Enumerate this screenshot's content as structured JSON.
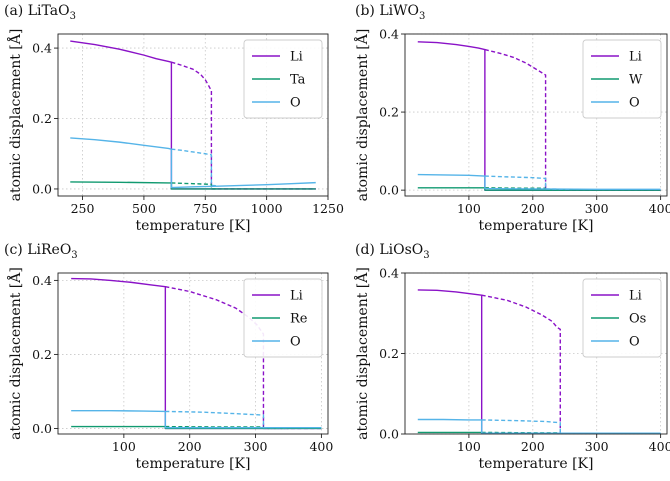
{
  "colors": {
    "Li": "#8a12c7",
    "B": "#119a70",
    "O": "#55b4e8"
  },
  "chart_data": [
    {
      "type": "line",
      "panel": "(a) LiTaO",
      "title_prefix": "(a) LiTaO",
      "title_sub": "3",
      "xlabel": "temperature [K]",
      "ylabel": "atomic displacement [Å]",
      "xlim": [
        150,
        1250
      ],
      "ylim": [
        -0.02,
        0.44
      ],
      "xticks": [
        250,
        500,
        750,
        1000,
        1250
      ],
      "yticks": [
        0.0,
        0.2,
        0.4
      ],
      "grid": true,
      "legend": "top-right",
      "series": [
        {
          "name": "Li",
          "color_key": "Li",
          "style": "solid",
          "x": [
            200,
            300,
            400,
            500,
            550,
            600,
            612,
            612,
            650,
            700,
            800,
            1000,
            1200
          ],
          "y": [
            0.42,
            0.41,
            0.397,
            0.38,
            0.37,
            0.362,
            0.36,
            0.0,
            0.0,
            0.0,
            0.0,
            0.0,
            0.0
          ]
        },
        {
          "name": "Li",
          "color_key": "Li",
          "style": "dashed",
          "x": [
            612,
            650,
            700,
            730,
            750,
            760,
            770,
            775,
            775,
            800,
            900,
            1000,
            1200
          ],
          "y": [
            0.36,
            0.352,
            0.34,
            0.326,
            0.31,
            0.298,
            0.285,
            0.28,
            0.0,
            0.0,
            0.0,
            0.0,
            0.0
          ]
        },
        {
          "name": "Ta",
          "color_key": "B",
          "style": "solid",
          "x": [
            200,
            400,
            600,
            612,
            612,
            800,
            1000,
            1200
          ],
          "y": [
            0.02,
            0.019,
            0.017,
            0.017,
            0.0,
            0.0,
            0.0,
            0.0
          ]
        },
        {
          "name": "Ta",
          "color_key": "B",
          "style": "dashed",
          "x": [
            612,
            700,
            775,
            775,
            800
          ],
          "y": [
            0.017,
            0.015,
            0.013,
            0.0,
            0.0
          ]
        },
        {
          "name": "O",
          "color_key": "O",
          "style": "solid",
          "x": [
            200,
            300,
            400,
            500,
            600,
            612,
            612,
            700,
            800,
            900,
            1000,
            1100,
            1200
          ],
          "y": [
            0.145,
            0.14,
            0.133,
            0.124,
            0.115,
            0.113,
            0.004,
            0.006,
            0.008,
            0.01,
            0.012,
            0.015,
            0.018
          ]
        },
        {
          "name": "O",
          "color_key": "O",
          "style": "dashed",
          "x": [
            612,
            650,
            700,
            750,
            775,
            775,
            800
          ],
          "y": [
            0.113,
            0.11,
            0.105,
            0.1,
            0.097,
            0.01,
            0.009
          ]
        }
      ],
      "legend_entries": [
        {
          "label": "Li",
          "color_key": "Li"
        },
        {
          "label": "Ta",
          "color_key": "B"
        },
        {
          "label": "O",
          "color_key": "O"
        }
      ]
    },
    {
      "type": "line",
      "panel": "(b) LiWO",
      "title_prefix": "(b) LiWO",
      "title_sub": "3",
      "xlabel": "temperature [K]",
      "ylabel": "atomic displacement [Å]",
      "xlim": [
        0,
        410
      ],
      "ylim": [
        -0.015,
        0.4
      ],
      "xticks": [
        100,
        200,
        300,
        400
      ],
      "yticks": [
        0.0,
        0.2,
        0.4
      ],
      "grid": true,
      "legend": "top-right",
      "series": [
        {
          "name": "Li",
          "color_key": "Li",
          "style": "solid",
          "x": [
            20,
            50,
            80,
            100,
            115,
            125,
            125,
            150,
            200,
            300,
            400
          ],
          "y": [
            0.38,
            0.378,
            0.373,
            0.368,
            0.364,
            0.36,
            0.0,
            0.0,
            0.0,
            0.0,
            0.0
          ]
        },
        {
          "name": "Li",
          "color_key": "Li",
          "style": "dashed",
          "x": [
            125,
            150,
            170,
            190,
            205,
            215,
            220,
            220,
            250,
            300,
            400
          ],
          "y": [
            0.36,
            0.35,
            0.34,
            0.325,
            0.31,
            0.3,
            0.295,
            0.0,
            0.0,
            0.0,
            0.0
          ]
        },
        {
          "name": "W",
          "color_key": "B",
          "style": "solid",
          "x": [
            20,
            100,
            125,
            125,
            200,
            300,
            400
          ],
          "y": [
            0.006,
            0.006,
            0.006,
            0.0,
            0.0,
            0.0,
            0.0
          ]
        },
        {
          "name": "W",
          "color_key": "B",
          "style": "dashed",
          "x": [
            125,
            180,
            220,
            220,
            250
          ],
          "y": [
            0.006,
            0.005,
            0.005,
            0.0,
            0.0
          ]
        },
        {
          "name": "O",
          "color_key": "O",
          "style": "solid",
          "x": [
            20,
            60,
            100,
            125,
            125,
            200,
            300,
            400
          ],
          "y": [
            0.04,
            0.039,
            0.038,
            0.036,
            0.004,
            0.003,
            0.002,
            0.002
          ]
        },
        {
          "name": "O",
          "color_key": "O",
          "style": "dashed",
          "x": [
            125,
            160,
            200,
            220,
            220,
            260
          ],
          "y": [
            0.036,
            0.034,
            0.032,
            0.03,
            0.003,
            0.002
          ]
        }
      ],
      "legend_entries": [
        {
          "label": "Li",
          "color_key": "Li"
        },
        {
          "label": "W",
          "color_key": "B"
        },
        {
          "label": "O",
          "color_key": "O"
        }
      ]
    },
    {
      "type": "line",
      "panel": "(c) LiReO",
      "title_prefix": "(c) LiReO",
      "title_sub": "3",
      "xlabel": "temperature [K]",
      "ylabel": "atomic displacement [Å]",
      "xlim": [
        0,
        410
      ],
      "ylim": [
        -0.015,
        0.42
      ],
      "xticks": [
        100,
        200,
        300,
        400
      ],
      "yticks": [
        0.0,
        0.2,
        0.4
      ],
      "grid": true,
      "legend": "top-right",
      "series": [
        {
          "name": "Li",
          "color_key": "Li",
          "style": "solid",
          "x": [
            20,
            50,
            80,
            110,
            140,
            163,
            163,
            200,
            300,
            400
          ],
          "y": [
            0.405,
            0.404,
            0.4,
            0.395,
            0.388,
            0.383,
            0.0,
            0.0,
            0.0,
            0.0
          ]
        },
        {
          "name": "Li",
          "color_key": "Li",
          "style": "dashed",
          "x": [
            163,
            200,
            240,
            270,
            290,
            302,
            310,
            312,
            312,
            350,
            400
          ],
          "y": [
            0.383,
            0.37,
            0.348,
            0.325,
            0.3,
            0.28,
            0.26,
            0.255,
            0.0,
            0.0,
            0.0
          ]
        },
        {
          "name": "Re",
          "color_key": "B",
          "style": "solid",
          "x": [
            20,
            100,
            163,
            163,
            250,
            400
          ],
          "y": [
            0.005,
            0.005,
            0.005,
            0.0,
            0.0,
            0.0
          ]
        },
        {
          "name": "Re",
          "color_key": "B",
          "style": "dashed",
          "x": [
            163,
            250,
            312,
            312,
            350
          ],
          "y": [
            0.005,
            0.004,
            0.004,
            0.0,
            0.0
          ]
        },
        {
          "name": "O",
          "color_key": "O",
          "style": "solid",
          "x": [
            20,
            80,
            130,
            163,
            163,
            250,
            400
          ],
          "y": [
            0.048,
            0.048,
            0.047,
            0.046,
            0.002,
            0.002,
            0.002
          ]
        },
        {
          "name": "O",
          "color_key": "O",
          "style": "dashed",
          "x": [
            163,
            220,
            270,
            312,
            312,
            350
          ],
          "y": [
            0.046,
            0.044,
            0.04,
            0.036,
            0.002,
            0.002
          ]
        }
      ],
      "legend_entries": [
        {
          "label": "Li",
          "color_key": "Li"
        },
        {
          "label": "Re",
          "color_key": "B"
        },
        {
          "label": "O",
          "color_key": "O"
        }
      ]
    },
    {
      "type": "line",
      "panel": "(d) LiOsO",
      "title_prefix": "(d) LiOsO",
      "title_sub": "3",
      "xlabel": "temperature [K]",
      "ylabel": "atomic displacement [Å]",
      "xlim": [
        0,
        410
      ],
      "ylim": [
        0.0,
        0.4
      ],
      "xticks": [
        100,
        200,
        300,
        400
      ],
      "yticks": [
        0.0,
        0.2,
        0.4
      ],
      "grid": true,
      "legend": "top-right",
      "series": [
        {
          "name": "Li",
          "color_key": "Li",
          "style": "solid",
          "x": [
            20,
            50,
            80,
            100,
            120,
            120,
            200,
            300,
            400
          ],
          "y": [
            0.358,
            0.357,
            0.353,
            0.349,
            0.345,
            0.0,
            0.0,
            0.0,
            0.0
          ]
        },
        {
          "name": "Li",
          "color_key": "Li",
          "style": "dashed",
          "x": [
            120,
            160,
            190,
            215,
            230,
            238,
            243,
            243,
            300,
            400
          ],
          "y": [
            0.345,
            0.332,
            0.315,
            0.295,
            0.28,
            0.265,
            0.26,
            0.0,
            0.0,
            0.0
          ]
        },
        {
          "name": "Os",
          "color_key": "B",
          "style": "solid",
          "x": [
            20,
            80,
            120,
            120,
            250,
            400
          ],
          "y": [
            0.004,
            0.004,
            0.004,
            0.0,
            0.0,
            0.0
          ]
        },
        {
          "name": "Os",
          "color_key": "B",
          "style": "dashed",
          "x": [
            120,
            200,
            243,
            243,
            300
          ],
          "y": [
            0.004,
            0.003,
            0.003,
            0.0,
            0.0
          ]
        },
        {
          "name": "O",
          "color_key": "O",
          "style": "solid",
          "x": [
            20,
            60,
            100,
            120,
            120,
            250,
            400
          ],
          "y": [
            0.036,
            0.036,
            0.035,
            0.035,
            0.002,
            0.002,
            0.002
          ]
        },
        {
          "name": "O",
          "color_key": "O",
          "style": "dashed",
          "x": [
            120,
            180,
            220,
            243,
            243,
            300
          ],
          "y": [
            0.035,
            0.033,
            0.031,
            0.028,
            0.002,
            0.002
          ]
        }
      ],
      "legend_entries": [
        {
          "label": "Li",
          "color_key": "Li"
        },
        {
          "label": "Os",
          "color_key": "B"
        },
        {
          "label": "O",
          "color_key": "O"
        }
      ]
    }
  ]
}
